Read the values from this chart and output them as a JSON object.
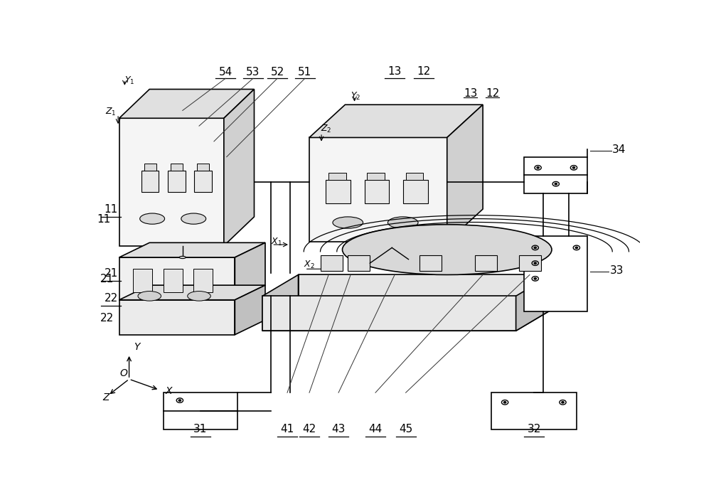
{
  "bg_color": "#ffffff",
  "line_color": "#000000",
  "figsize": [
    10.0,
    7.06
  ],
  "dpi": 100
}
